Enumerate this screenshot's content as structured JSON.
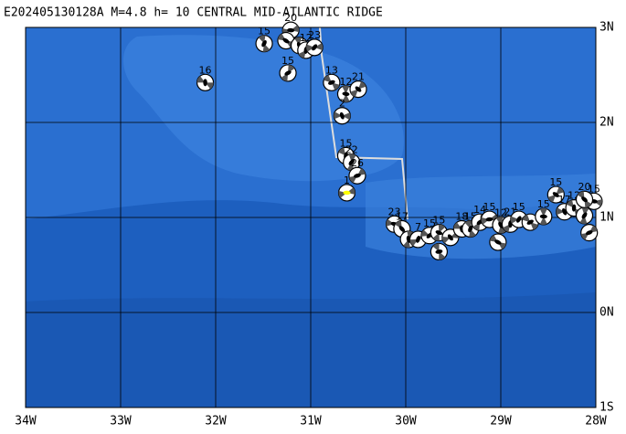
{
  "header": {
    "title": "E202405130128A M=4.8 h= 10 CENTRAL MID-ATLANTIC RIDGE"
  },
  "map": {
    "lonlim": [
      -34,
      -28
    ],
    "latlim": [
      -1,
      3
    ],
    "lon_ticks": [
      {
        "value": -34,
        "label": "34W"
      },
      {
        "value": -33,
        "label": "33W"
      },
      {
        "value": -32,
        "label": "32W"
      },
      {
        "value": -31,
        "label": "31W"
      },
      {
        "value": -30,
        "label": "30W"
      },
      {
        "value": -29,
        "label": "29W"
      },
      {
        "value": -28,
        "label": "28W"
      }
    ],
    "lat_ticks": [
      {
        "value": 3,
        "label": "3N"
      },
      {
        "value": 2,
        "label": "2N"
      },
      {
        "value": 1,
        "label": "1N"
      },
      {
        "value": 0,
        "label": "0N"
      },
      {
        "value": -1,
        "label": "1S"
      }
    ],
    "main_event": {
      "label": "1",
      "lon": -30.62,
      "lat": 1.26,
      "color": "#ffff00"
    },
    "events": [
      {
        "label": "16",
        "lon": -32.11,
        "lat": 2.42
      },
      {
        "label": "15",
        "lon": -31.49,
        "lat": 2.83
      },
      {
        "label": "15",
        "lon": -31.24,
        "lat": 2.52
      },
      {
        "label": "20",
        "lon": -31.21,
        "lat": 2.97
      },
      {
        "label": null,
        "lon": -31.26,
        "lat": 2.86
      },
      {
        "label": null,
        "lon": -31.12,
        "lat": 2.81
      },
      {
        "label": "12",
        "lon": -31.05,
        "lat": 2.76
      },
      {
        "label": "23",
        "lon": -30.96,
        "lat": 2.79
      },
      {
        "label": "13",
        "lon": -30.78,
        "lat": 2.42
      },
      {
        "label": "12",
        "lon": -30.63,
        "lat": 2.3
      },
      {
        "label": "21",
        "lon": -30.5,
        "lat": 2.35
      },
      {
        "label": "2",
        "lon": -30.67,
        "lat": 2.07
      },
      {
        "label": "15",
        "lon": -30.63,
        "lat": 1.65
      },
      {
        "label": "22",
        "lon": -30.57,
        "lat": 1.58
      },
      {
        "label": "26",
        "lon": -30.51,
        "lat": 1.44
      },
      {
        "label": "23",
        "lon": -30.12,
        "lat": 0.93
      },
      {
        "label": "17",
        "lon": -30.04,
        "lat": 0.88
      },
      {
        "label": null,
        "lon": -29.97,
        "lat": 0.77
      },
      {
        "label": "7",
        "lon": -29.87,
        "lat": 0.77
      },
      {
        "label": "15",
        "lon": -29.75,
        "lat": 0.81
      },
      {
        "label": null,
        "lon": -29.65,
        "lat": 0.64
      },
      {
        "label": "15",
        "lon": -29.65,
        "lat": 0.84
      },
      {
        "label": null,
        "lon": -29.53,
        "lat": 0.79
      },
      {
        "label": "18",
        "lon": -29.41,
        "lat": 0.88
      },
      {
        "label": "15",
        "lon": -29.32,
        "lat": 0.88
      },
      {
        "label": "14",
        "lon": -29.22,
        "lat": 0.95
      },
      {
        "label": "15",
        "lon": -29.12,
        "lat": 0.98
      },
      {
        "label": null,
        "lon": -29.03,
        "lat": 0.74
      },
      {
        "label": "12",
        "lon": -29.0,
        "lat": 0.92
      },
      {
        "label": "21",
        "lon": -28.9,
        "lat": 0.93
      },
      {
        "label": "15",
        "lon": -28.81,
        "lat": 0.98
      },
      {
        "label": null,
        "lon": -28.69,
        "lat": 0.95
      },
      {
        "label": "15",
        "lon": -28.55,
        "lat": 1.01
      },
      {
        "label": "15",
        "lon": -28.42,
        "lat": 1.24
      },
      {
        "label": "17",
        "lon": -28.33,
        "lat": 1.06
      },
      {
        "label": "12",
        "lon": -28.23,
        "lat": 1.1
      },
      {
        "label": "15",
        "lon": -28.12,
        "lat": 1.02
      },
      {
        "label": null,
        "lon": -28.07,
        "lat": 0.84
      },
      {
        "label": "15",
        "lon": -28.02,
        "lat": 1.17
      },
      {
        "label": "20",
        "lon": -28.12,
        "lat": 1.19
      }
    ]
  }
}
